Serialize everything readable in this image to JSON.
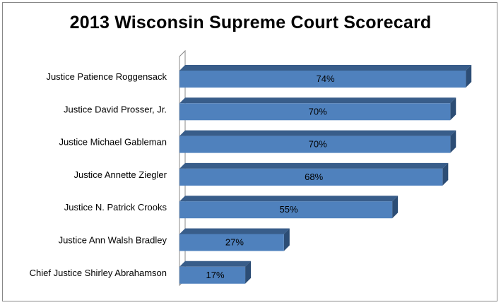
{
  "chart_data": {
    "type": "bar",
    "orientation": "horizontal",
    "title": "2013 Wisconsin Supreme Court Scorecard",
    "categories": [
      "Justice Patience Roggensack",
      "Justice David Prosser, Jr.",
      "Justice Michael Gableman",
      "Justice Annette Ziegler",
      "Justice N. Patrick Crooks",
      "Justice Ann Walsh Bradley",
      "Chief Justice Shirley Abrahamson"
    ],
    "values": [
      74,
      70,
      70,
      68,
      55,
      27,
      17
    ],
    "data_labels": [
      "74%",
      "70%",
      "70%",
      "68%",
      "55%",
      "27%",
      "17%"
    ],
    "xlim": [
      0,
      80
    ],
    "grid": false,
    "legend": "none",
    "bar_color": "#4F81BD",
    "bar_side_color": "#2C4D75",
    "bar_top_color": "#385D8A"
  }
}
